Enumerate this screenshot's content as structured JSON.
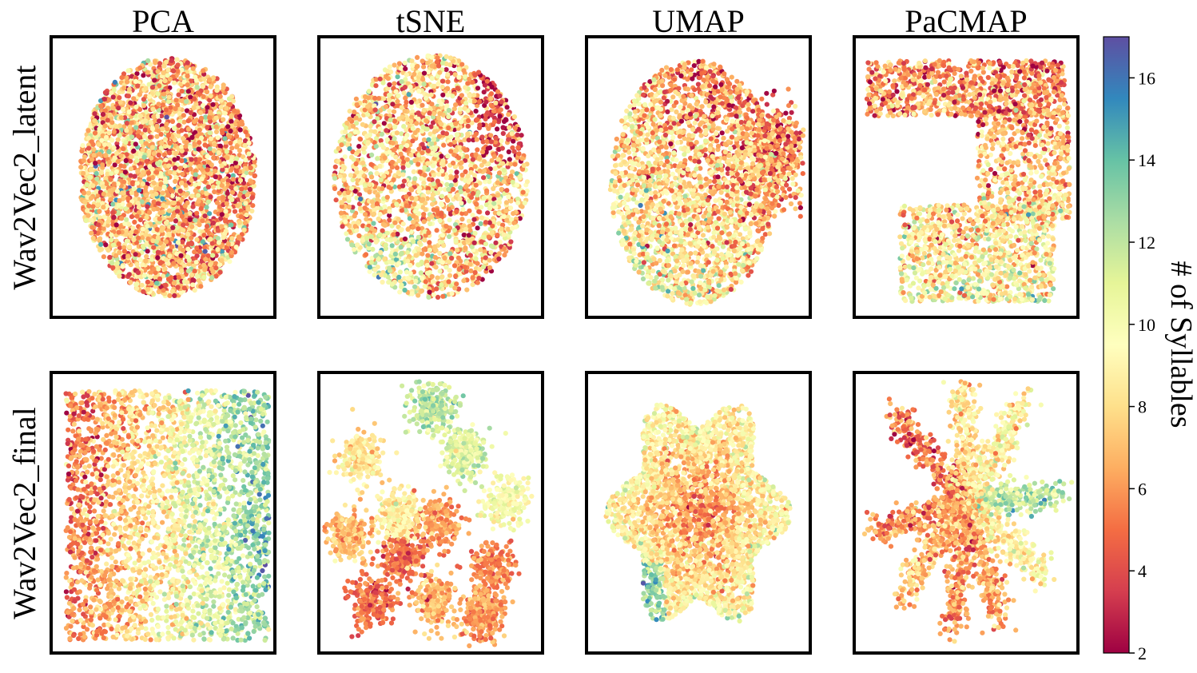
{
  "chart_data": {
    "type": "scatter",
    "layout": "2x4 grid of embedding scatter plots with shared colorbar",
    "columns": [
      "PCA",
      "tSNE",
      "UMAP",
      "PaCMAP"
    ],
    "rows": [
      "Wav2Vec2_latent",
      "Wav2Vec2_final"
    ],
    "axes": {
      "ticks": "none",
      "grid": false
    },
    "colorbar": {
      "label": "# of Syllables",
      "colormap": "Spectral",
      "range": [
        2,
        17
      ],
      "ticks": [
        2,
        4,
        6,
        8,
        10,
        12,
        14,
        16
      ],
      "stops": [
        "#9e0142",
        "#d53e4f",
        "#f46d43",
        "#fdae61",
        "#fee08b",
        "#ffffbf",
        "#e6f598",
        "#abdda4",
        "#66c2a5",
        "#3288bd",
        "#5e4fa2"
      ]
    },
    "panels": [
      {
        "row": "Wav2Vec2_latent",
        "column": "PCA",
        "shape": "single round blob",
        "color_pattern": "mixed; orange-red concentrated right-center, greens scattered toward left",
        "mean_syllables": 7
      },
      {
        "row": "Wav2Vec2_latent",
        "column": "tSNE",
        "shape": "round cloud with small gaps",
        "color_pattern": "red cluster upper-right, greens lower-left and scattered",
        "mean_syllables": 7.5
      },
      {
        "row": "Wav2Vec2_latent",
        "column": "UMAP",
        "shape": "blob with lobe on right",
        "color_pattern": "red-orange top and right, greens lower-left",
        "mean_syllables": 7.5
      },
      {
        "row": "Wav2Vec2_latent",
        "column": "PaCMAP",
        "shape": "C-shaped band open on the left",
        "color_pattern": "red-orange upper band, greens lower band",
        "mean_syllables": 7.5
      },
      {
        "row": "Wav2Vec2_final",
        "column": "PCA",
        "shape": "wide cloud",
        "color_pattern": "left-to-right gradient from red/orange to green/blue",
        "mean_syllables": 8
      },
      {
        "row": "Wav2Vec2_final",
        "column": "tSNE",
        "shape": "about 11 separate clusters",
        "color_pattern": "clusters colored by syllable count; green cluster at top, red-orange at bottom-left",
        "mean_syllables": 7
      },
      {
        "row": "Wav2Vec2_final",
        "column": "UMAP",
        "shape": "flower of overlapping lobes",
        "color_pattern": "red-orange center, yellow-green outer lobes, blue-green lower-left lobe",
        "mean_syllables": 7.5
      },
      {
        "row": "Wav2Vec2_final",
        "column": "PaCMAP",
        "shape": "star of radiating arms",
        "color_pattern": "red-orange arms left, greens right arm",
        "mean_syllables": 7.5
      }
    ]
  }
}
